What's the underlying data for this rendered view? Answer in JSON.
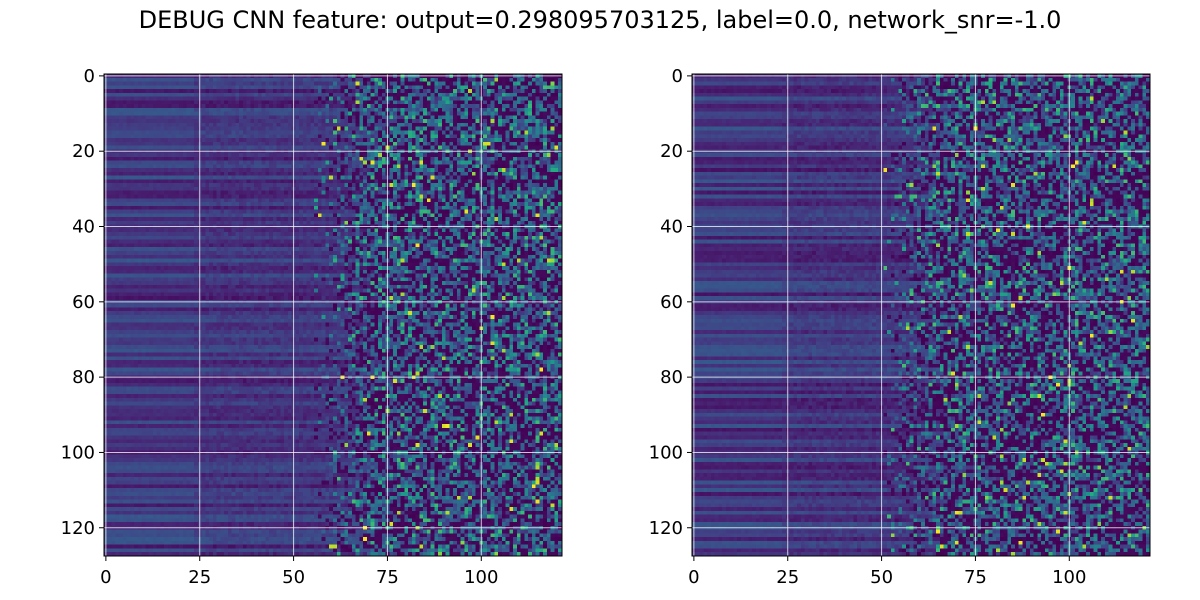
{
  "title": "DEBUG CNN feature: output=0.298095703125, label=0.0, network_snr=-1.0",
  "chart_data": [
    {
      "type": "heatmap",
      "name": "left",
      "rows": 128,
      "cols": 122,
      "xlim": [
        -0.5,
        121.5
      ],
      "ylim": [
        127.5,
        -0.5
      ],
      "xticks": [
        0,
        25,
        50,
        75,
        100
      ],
      "yticks": [
        0,
        20,
        40,
        60,
        80,
        100,
        120
      ],
      "xtick_labels": [
        "0",
        "25",
        "50",
        "75",
        "100"
      ],
      "ytick_labels": [
        "0",
        "20",
        "40",
        "60",
        "80",
        "100",
        "120"
      ],
      "colormap": "viridis",
      "grid": true,
      "seed": 7
    },
    {
      "type": "heatmap",
      "name": "right",
      "rows": 128,
      "cols": 122,
      "xlim": [
        -0.5,
        121.5
      ],
      "ylim": [
        127.5,
        -0.5
      ],
      "xticks": [
        0,
        25,
        50,
        75,
        100
      ],
      "yticks": [
        0,
        20,
        40,
        60,
        80,
        100,
        120
      ],
      "xtick_labels": [
        "0",
        "25",
        "50",
        "75",
        "100"
      ],
      "ytick_labels": [
        "0",
        "20",
        "40",
        "60",
        "80",
        "100",
        "120"
      ],
      "colormap": "viridis",
      "grid": true,
      "seed": 13
    }
  ],
  "colors": {
    "dark": "#440154",
    "dark2": "#482475",
    "mid": "#2a788e",
    "teal": "#22a884",
    "yellow": "#fde725",
    "grid": "#ffffff"
  }
}
